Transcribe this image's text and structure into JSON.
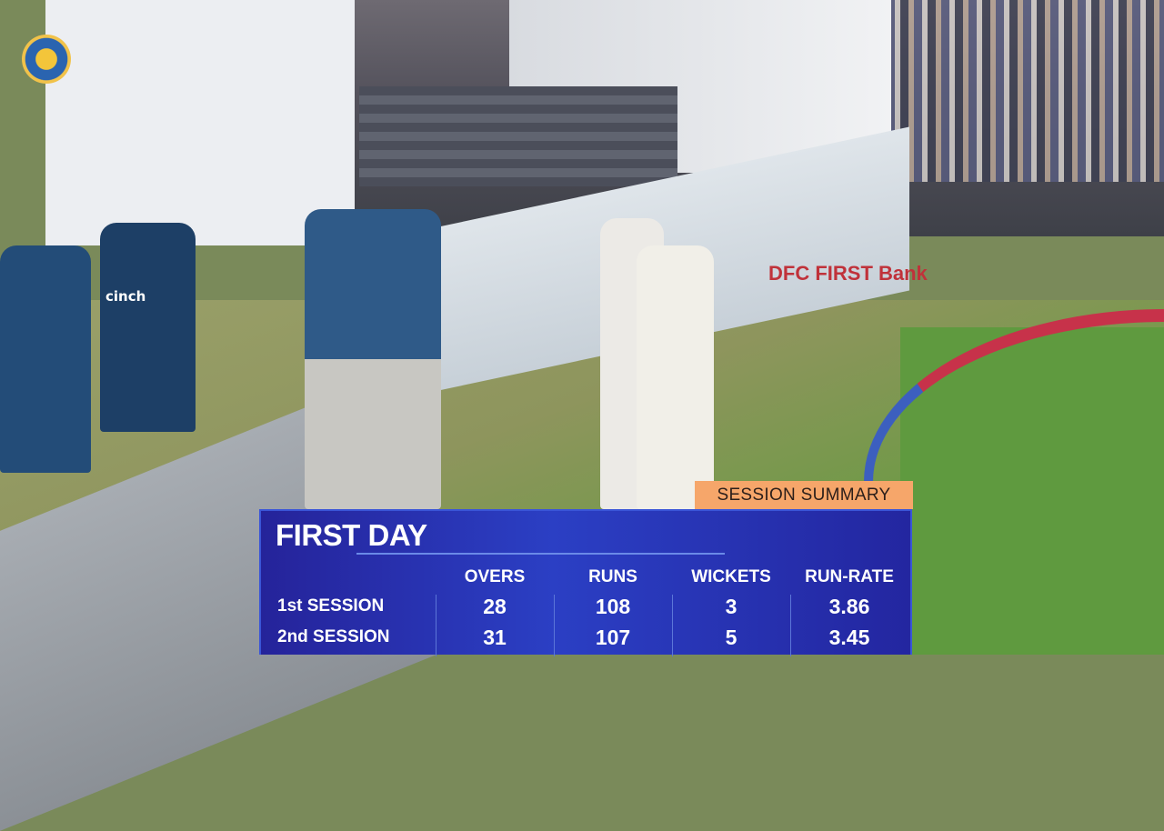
{
  "scene": {
    "boundary_board_text": "DFC FIRST Bank",
    "player_shirt_text": "cinch"
  },
  "overlay": {
    "tag": "SESSION SUMMARY",
    "title": "FIRST DAY",
    "columns": [
      "OVERS",
      "RUNS",
      "WICKETS",
      "RUN-RATE"
    ],
    "rows": [
      {
        "label": "1st SESSION",
        "values": [
          "28",
          "108",
          "3",
          "3.86"
        ]
      },
      {
        "label": "2nd SESSION",
        "values": [
          "31",
          "107",
          "5",
          "3.45"
        ]
      }
    ],
    "colors": {
      "panel": "#2b3fc4",
      "tag": "#f6a66a"
    }
  }
}
